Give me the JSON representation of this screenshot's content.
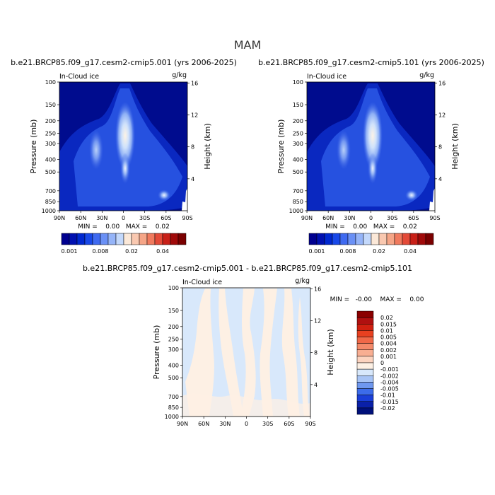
{
  "page": {
    "title": "MAM"
  },
  "panels": [
    {
      "run_title": "b.e21.BRCP85.f09_g17.cesm2-cmip5.001 (yrs 2006-2025)",
      "variable": "In-Cloud ice",
      "units": "g/kg",
      "stats": "MIN =    0.00   MAX =    0.02"
    },
    {
      "run_title": "b.e21.BRCP85.f09_g17.cesm2-cmip5.101 (yrs 2006-2025)",
      "variable": "In-Cloud ice",
      "units": "g/kg",
      "stats": "MIN =    0.00   MAX =    0.02"
    },
    {
      "run_title": "b.e21.BRCP85.f09_g17.cesm2-cmip5.001 - b.e21.BRCP85.f09_g17.cesm2-cmip5.101",
      "variable": "In-Cloud ice",
      "units": "g/kg",
      "stats": "MIN =   -0.00    MAX =    0.00"
    }
  ],
  "axes": {
    "ylabel": "Pressure (mb)",
    "ylabel_right": "Height (km)",
    "pressure_ticks": [
      "100",
      "150",
      "200",
      "250",
      "300",
      "400",
      "500",
      "700",
      "850",
      "1000"
    ],
    "height_ticks": [
      "16",
      "12",
      "8",
      "4"
    ],
    "lat_ticks": [
      "90N",
      "60N",
      "30N",
      "0",
      "30S",
      "60S",
      "90S"
    ]
  },
  "colorbar_top": {
    "labels": [
      "0.001",
      "0.008",
      "0.02",
      "0.04"
    ],
    "colors": [
      "#00008f",
      "#0010b0",
      "#0028d0",
      "#1848e8",
      "#3f6af0",
      "#6a90f5",
      "#95b4f8",
      "#c3d8fb",
      "#fbe8d8",
      "#f9c8b0",
      "#f5a587",
      "#f07a5e",
      "#e34a38",
      "#c82018",
      "#a00a0a",
      "#7a0000"
    ]
  },
  "colorbar_diff": {
    "labels": [
      "0.02",
      "0.015",
      "0.01",
      "0.005",
      "0.004",
      "0.002",
      "0.001",
      "0",
      "-0.001",
      "-0.002",
      "-0.004",
      "-0.005",
      "-0.01",
      "-0.015",
      "-0.02"
    ],
    "colors": [
      "#8b0000",
      "#b01010",
      "#d02010",
      "#e84020",
      "#f06848",
      "#f48a6a",
      "#f8ae92",
      "#fcd3bf",
      "#fdf0e4",
      "#d8e8fb",
      "#a8c4f5",
      "#6f98ef",
      "#3c6cea",
      "#1a3fd8",
      "#0a20a8",
      "#00107a"
    ]
  },
  "chart_data": [
    {
      "type": "heatmap",
      "title": "b.e21.BRCP85.f09_g17.cesm2-cmip5.001 (yrs 2006-2025)",
      "variable": "In-Cloud ice",
      "units": "g/kg",
      "xlabel": "",
      "ylabel": "Pressure (mb)",
      "ylabel_right": "Height (km)",
      "x_ticks": [
        "90N",
        "60N",
        "30N",
        "0",
        "30S",
        "60S",
        "90S"
      ],
      "y_ticks": [
        100,
        150,
        200,
        250,
        300,
        400,
        500,
        700,
        850,
        1000
      ],
      "y_scale": "log",
      "ylim": [
        1000,
        100
      ],
      "xlim": [
        90,
        -90
      ],
      "min": 0.0,
      "max": 0.02,
      "levels": [
        0.001,
        0.002,
        0.003,
        0.004,
        0.006,
        0.008,
        0.01,
        0.012,
        0.015,
        0.02,
        0.025,
        0.03,
        0.035,
        0.04,
        0.05
      ],
      "features": [
        {
          "lat": 0,
          "pressure": 230,
          "value": 0.02
        },
        {
          "lat": 35,
          "pressure": 330,
          "value": 0.012
        },
        {
          "lat": -60,
          "pressure": 730,
          "value": 0.01
        }
      ]
    },
    {
      "type": "heatmap",
      "title": "b.e21.BRCP85.f09_g17.cesm2-cmip5.101 (yrs 2006-2025)",
      "variable": "In-Cloud ice",
      "units": "g/kg",
      "xlabel": "",
      "ylabel": "Pressure (mb)",
      "ylabel_right": "Height (km)",
      "x_ticks": [
        "90N",
        "60N",
        "30N",
        "0",
        "30S",
        "60S",
        "90S"
      ],
      "y_ticks": [
        100,
        150,
        200,
        250,
        300,
        400,
        500,
        700,
        850,
        1000
      ],
      "y_scale": "log",
      "ylim": [
        1000,
        100
      ],
      "xlim": [
        90,
        -90
      ],
      "min": 0.0,
      "max": 0.02,
      "levels": [
        0.001,
        0.002,
        0.003,
        0.004,
        0.006,
        0.008,
        0.01,
        0.012,
        0.015,
        0.02,
        0.025,
        0.03,
        0.035,
        0.04,
        0.05
      ],
      "features": [
        {
          "lat": 0,
          "pressure": 230,
          "value": 0.02
        },
        {
          "lat": 35,
          "pressure": 330,
          "value": 0.012
        },
        {
          "lat": -60,
          "pressure": 730,
          "value": 0.01
        }
      ]
    },
    {
      "type": "heatmap",
      "title": "b.e21.BRCP85.f09_g17.cesm2-cmip5.001 - b.e21.BRCP85.f09_g17.cesm2-cmip5.101",
      "variable": "In-Cloud ice",
      "units": "g/kg",
      "xlabel": "",
      "ylabel": "Pressure (mb)",
      "ylabel_right": "Height (km)",
      "x_ticks": [
        "90N",
        "60N",
        "30N",
        "0",
        "30S",
        "60S",
        "90S"
      ],
      "y_ticks": [
        100,
        150,
        200,
        250,
        300,
        400,
        500,
        700,
        850,
        1000
      ],
      "y_scale": "log",
      "ylim": [
        1000,
        100
      ],
      "xlim": [
        90,
        -90
      ],
      "min": -0.0,
      "max": 0.0,
      "levels": [
        -0.02,
        -0.015,
        -0.01,
        -0.005,
        -0.004,
        -0.002,
        -0.001,
        0,
        0.001,
        0.002,
        0.004,
        0.005,
        0.01,
        0.015,
        0.02
      ],
      "features": [
        {
          "sign": "mixed",
          "value_range": [
            -0.001,
            0.001
          ]
        }
      ]
    }
  ]
}
